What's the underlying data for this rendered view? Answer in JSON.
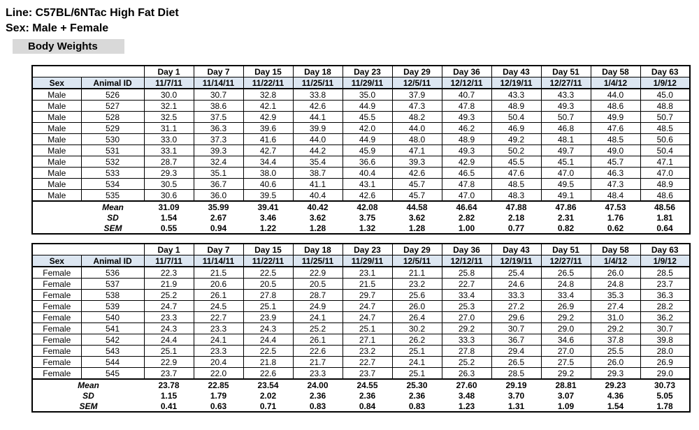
{
  "header": {
    "line": "Line: C57BL/6NTac High Fat Diet",
    "sex": "Sex: Male + Female",
    "section": "Body Weights"
  },
  "columns": {
    "sex_label": "Sex",
    "animal_id_label": "Animal ID",
    "days": [
      "Day 1",
      "Day 7",
      "Day 15",
      "Day 18",
      "Day 23",
      "Day 29",
      "Day 36",
      "Day 43",
      "Day 51",
      "Day 58",
      "Day 63"
    ],
    "dates": [
      "11/7/11",
      "11/14/11",
      "11/22/11",
      "11/25/11",
      "11/29/11",
      "12/5/11",
      "12/12/11",
      "12/19/11",
      "12/27/11",
      "1/4/12",
      "1/9/12"
    ]
  },
  "male_table": {
    "rows": [
      {
        "sex": "Male",
        "id": "526",
        "values": [
          "30.0",
          "30.7",
          "32.8",
          "33.8",
          "35.0",
          "37.9",
          "40.7",
          "43.3",
          "43.3",
          "44.0",
          "45.0"
        ]
      },
      {
        "sex": "Male",
        "id": "527",
        "values": [
          "32.1",
          "38.6",
          "42.1",
          "42.6",
          "44.9",
          "47.3",
          "47.8",
          "48.9",
          "49.3",
          "48.6",
          "48.8"
        ]
      },
      {
        "sex": "Male",
        "id": "528",
        "values": [
          "32.5",
          "37.5",
          "42.9",
          "44.1",
          "45.5",
          "48.2",
          "49.3",
          "50.4",
          "50.7",
          "49.9",
          "50.7"
        ]
      },
      {
        "sex": "Male",
        "id": "529",
        "values": [
          "31.1",
          "36.3",
          "39.6",
          "39.9",
          "42.0",
          "44.0",
          "46.2",
          "46.9",
          "46.8",
          "47.6",
          "48.5"
        ]
      },
      {
        "sex": "Male",
        "id": "530",
        "values": [
          "33.0",
          "37.3",
          "41.6",
          "44.0",
          "44.9",
          "48.0",
          "48.9",
          "49.2",
          "48.1",
          "48.5",
          "50.6"
        ]
      },
      {
        "sex": "Male",
        "id": "531",
        "values": [
          "33.1",
          "39.3",
          "42.7",
          "44.2",
          "45.9",
          "47.1",
          "49.3",
          "50.2",
          "49.7",
          "49.0",
          "50.4"
        ]
      },
      {
        "sex": "Male",
        "id": "532",
        "values": [
          "28.7",
          "32.4",
          "34.4",
          "35.4",
          "36.6",
          "39.3",
          "42.9",
          "45.5",
          "45.1",
          "45.7",
          "47.1"
        ]
      },
      {
        "sex": "Male",
        "id": "533",
        "values": [
          "29.3",
          "35.1",
          "38.0",
          "38.7",
          "40.4",
          "42.6",
          "46.5",
          "47.6",
          "47.0",
          "46.3",
          "47.0"
        ]
      },
      {
        "sex": "Male",
        "id": "534",
        "values": [
          "30.5",
          "36.7",
          "40.6",
          "41.1",
          "43.1",
          "45.7",
          "47.8",
          "48.5",
          "49.5",
          "47.3",
          "48.9"
        ]
      },
      {
        "sex": "Male",
        "id": "535",
        "values": [
          "30.6",
          "36.0",
          "39.5",
          "40.4",
          "42.6",
          "45.7",
          "47.0",
          "48.3",
          "49.1",
          "48.4",
          "48.6"
        ]
      }
    ],
    "stats": [
      {
        "label": "Mean",
        "values": [
          "31.09",
          "35.99",
          "39.41",
          "40.42",
          "42.08",
          "44.58",
          "46.64",
          "47.88",
          "47.86",
          "47.53",
          "48.56"
        ]
      },
      {
        "label": "SD",
        "values": [
          "1.54",
          "2.67",
          "3.46",
          "3.62",
          "3.75",
          "3.62",
          "2.82",
          "2.18",
          "2.31",
          "1.76",
          "1.81"
        ]
      },
      {
        "label": "SEM",
        "values": [
          "0.55",
          "0.94",
          "1.22",
          "1.28",
          "1.32",
          "1.28",
          "1.00",
          "0.77",
          "0.82",
          "0.62",
          "0.64"
        ]
      }
    ]
  },
  "female_table": {
    "rows": [
      {
        "sex": "Female",
        "id": "536",
        "values": [
          "22.3",
          "21.5",
          "22.5",
          "22.9",
          "23.1",
          "21.1",
          "25.8",
          "25.4",
          "26.5",
          "26.0",
          "28.5"
        ]
      },
      {
        "sex": "Female",
        "id": "537",
        "values": [
          "21.9",
          "20.6",
          "20.5",
          "20.5",
          "21.5",
          "23.2",
          "22.7",
          "24.6",
          "24.8",
          "24.8",
          "23.7"
        ]
      },
      {
        "sex": "Female",
        "id": "538",
        "values": [
          "25.2",
          "26.1",
          "27.8",
          "28.7",
          "29.7",
          "25.6",
          "33.4",
          "33.3",
          "33.4",
          "35.3",
          "36.3"
        ]
      },
      {
        "sex": "Female",
        "id": "539",
        "values": [
          "24.7",
          "24.5",
          "25.1",
          "24.9",
          "24.7",
          "26.0",
          "25.3",
          "27.2",
          "26.9",
          "27.4",
          "28.2"
        ]
      },
      {
        "sex": "Female",
        "id": "540",
        "values": [
          "23.3",
          "22.7",
          "23.9",
          "24.1",
          "24.7",
          "26.4",
          "27.0",
          "29.6",
          "29.2",
          "31.0",
          "36.2"
        ]
      },
      {
        "sex": "Female",
        "id": "541",
        "values": [
          "24.3",
          "23.3",
          "24.3",
          "25.2",
          "25.1",
          "30.2",
          "29.2",
          "30.7",
          "29.0",
          "29.2",
          "30.7"
        ]
      },
      {
        "sex": "Female",
        "id": "542",
        "values": [
          "24.4",
          "24.1",
          "24.4",
          "26.1",
          "27.1",
          "26.2",
          "33.3",
          "36.7",
          "34.6",
          "37.8",
          "39.8"
        ]
      },
      {
        "sex": "Female",
        "id": "543",
        "values": [
          "25.1",
          "23.3",
          "22.5",
          "22.6",
          "23.2",
          "25.1",
          "27.8",
          "29.4",
          "27.0",
          "25.5",
          "28.0"
        ]
      },
      {
        "sex": "Female",
        "id": "544",
        "values": [
          "22.9",
          "20.4",
          "21.8",
          "21.7",
          "22.7",
          "24.1",
          "25.2",
          "26.5",
          "27.5",
          "26.0",
          "26.9"
        ]
      },
      {
        "sex": "Female",
        "id": "545",
        "values": [
          "23.7",
          "22.0",
          "22.6",
          "23.3",
          "23.7",
          "25.1",
          "26.3",
          "28.5",
          "29.2",
          "29.3",
          "29.0"
        ]
      }
    ],
    "stats": [
      {
        "label": "Mean",
        "values": [
          "23.78",
          "22.85",
          "23.54",
          "24.00",
          "24.55",
          "25.30",
          "27.60",
          "29.19",
          "28.81",
          "29.23",
          "30.73"
        ]
      },
      {
        "label": "SD",
        "values": [
          "1.15",
          "1.79",
          "2.02",
          "2.36",
          "2.36",
          "2.36",
          "3.48",
          "3.70",
          "3.07",
          "4.36",
          "5.05"
        ]
      },
      {
        "label": "SEM",
        "values": [
          "0.41",
          "0.63",
          "0.71",
          "0.83",
          "0.84",
          "0.83",
          "1.23",
          "1.31",
          "1.09",
          "1.54",
          "1.78"
        ]
      }
    ]
  },
  "colors": {
    "header_blue": "#dce6f1",
    "section_gray": "#d9d9d9",
    "border_black": "#000000"
  }
}
